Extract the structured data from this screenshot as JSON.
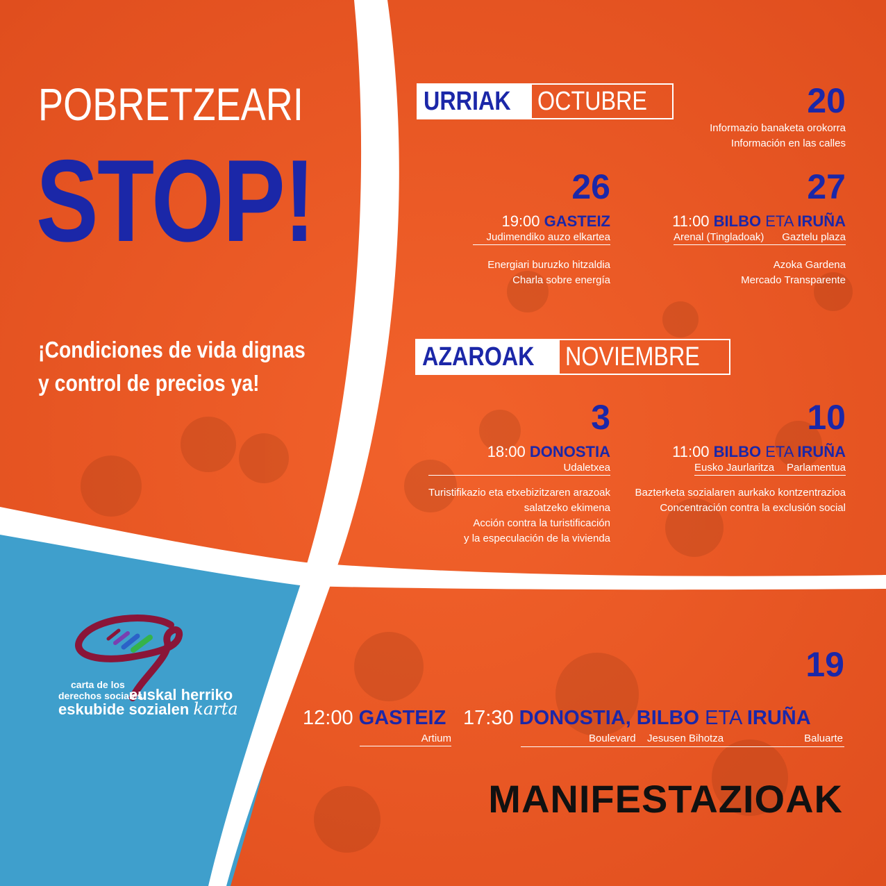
{
  "colors": {
    "orange": "#ee5a26",
    "blue_text": "#1b27a8",
    "sky_blue": "#3f9fcc",
    "white": "#ffffff",
    "logo_maroon": "#8a1538"
  },
  "headline": {
    "line1": "POBRETZEARI",
    "line2": "STOP!"
  },
  "slogan": {
    "line1": "¡Condiciones de vida dignas",
    "line2": "y control de precios ya!"
  },
  "october": {
    "basque": "URRIAK",
    "spanish": "OCTUBRE",
    "events": [
      {
        "day": "20",
        "desc_eu": "Informazio banaketa orokorra",
        "desc_es": "Información en las calles"
      },
      {
        "day": "26",
        "time": "19:00",
        "city": "GASTEIZ",
        "place": "Judimendiko auzo elkartea",
        "desc_eu": "Energiari buruzko hitzaldia",
        "desc_es": "Charla sobre energía"
      },
      {
        "day": "27",
        "time": "11:00",
        "city1": "BILBO",
        "conj": "ETA",
        "city2": "IRUÑA",
        "place1": "Arenal (Tingladoak)",
        "place2": "Gaztelu plaza",
        "desc_eu": "Azoka Gardena",
        "desc_es": "Mercado Transparente"
      }
    ]
  },
  "november": {
    "basque": "AZAROAK",
    "spanish": "NOVIEMBRE",
    "events": [
      {
        "day": "3",
        "time": "18:00",
        "city": "DONOSTIA",
        "place": "Udaletxea",
        "desc_eu_1": "Turistifikazio eta etxebizitzaren arazoak",
        "desc_eu_2": "salatzeko ekimena",
        "desc_es_1": "Acción contra la turistificación",
        "desc_es_2": "y la especulación de la vivienda"
      },
      {
        "day": "10",
        "time": "11:00",
        "city1": "BILBO",
        "conj": "ETA",
        "city2": "IRUÑA",
        "place1": "Eusko Jaurlaritza",
        "place2": "Parlamentua",
        "desc_eu": "Bazterketa sozialaren aurkako kontzentrazioa",
        "desc_es": "Concentración contra la exclusión social"
      },
      {
        "day": "19",
        "time1": "12:00",
        "city_a": "GASTEIZ",
        "place_a": "Artium",
        "time2": "17:30",
        "city_b": "DONOSTIA, BILBO",
        "conj": "ETA",
        "city_c": "IRUÑA",
        "place_b1": "Boulevard",
        "place_b2": "Jesusen Bihotza",
        "place_c": "Baluarte",
        "title": "MANIFESTAZIOAK"
      }
    ]
  },
  "logo": {
    "line1": "carta de los",
    "line2": "derechos sociales",
    "line3": "euskal herriko",
    "line4": "eskubide sozialen",
    "line5": "karta",
    "icon": "logo-loop-icon"
  }
}
